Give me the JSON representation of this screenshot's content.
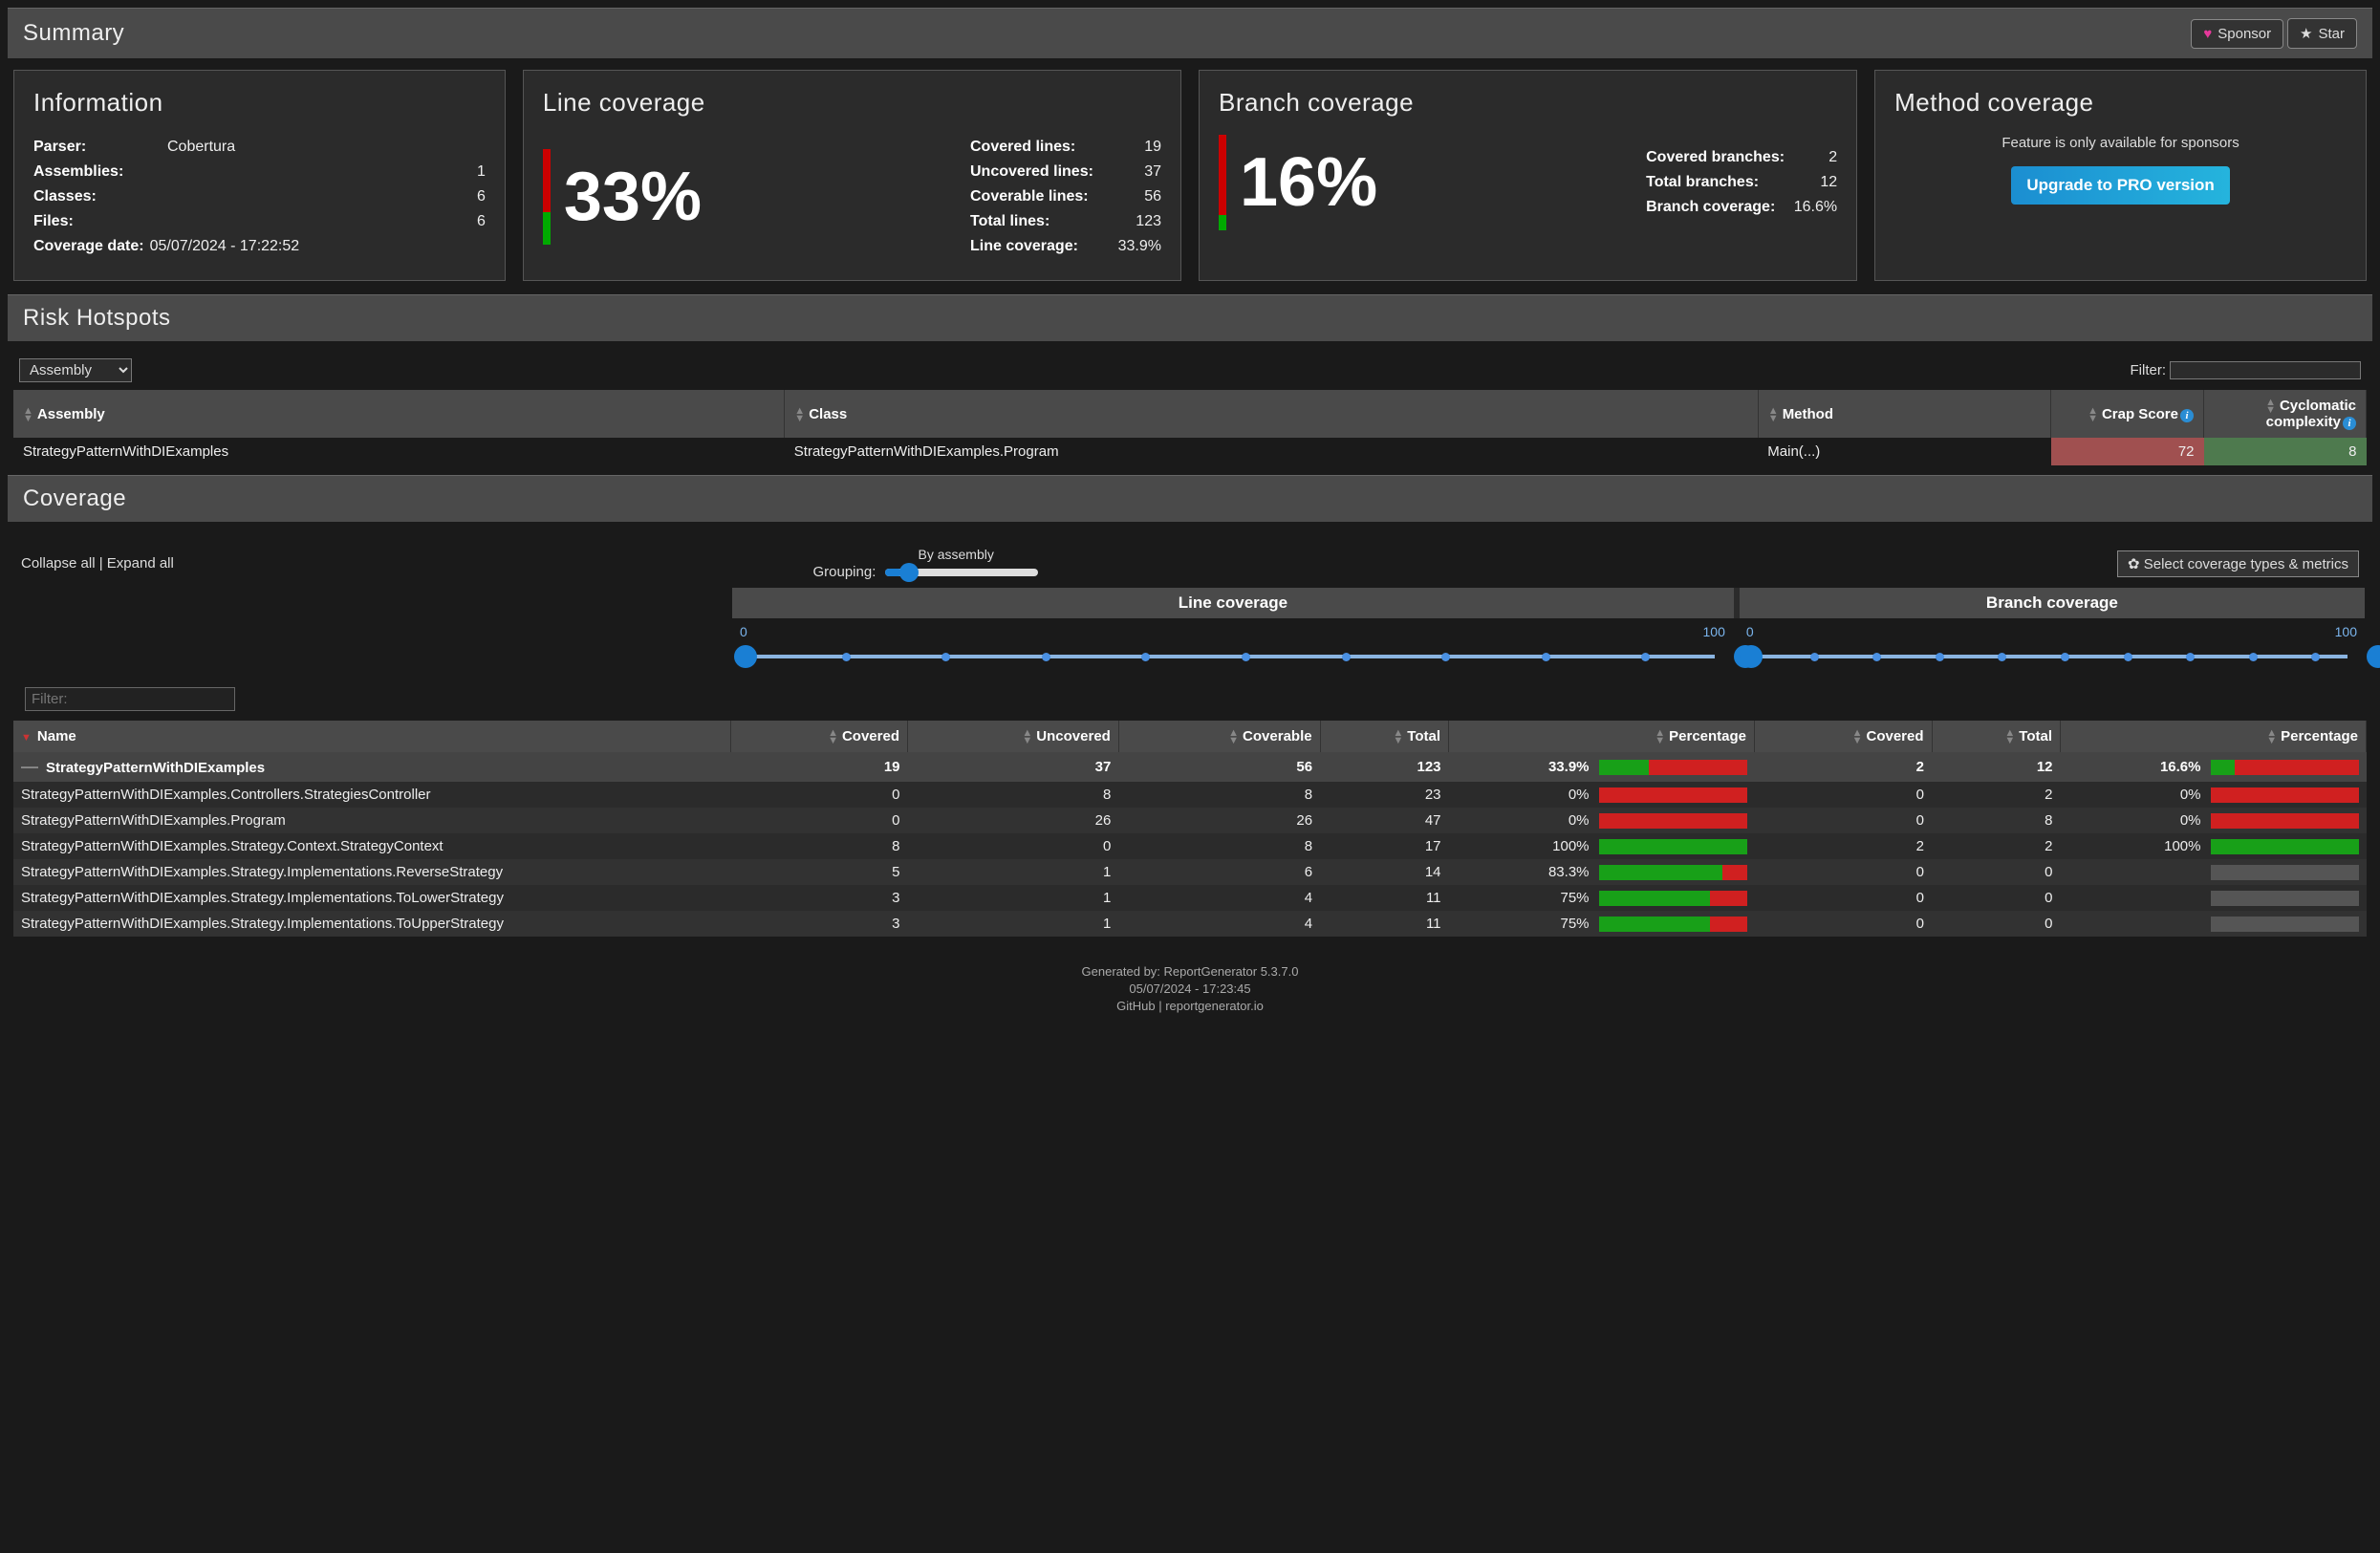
{
  "summary": {
    "title": "Summary",
    "sponsor_label": "Sponsor",
    "star_label": "Star"
  },
  "info": {
    "heading": "Information",
    "parser_k": "Parser:",
    "parser_v": "Cobertura",
    "assemblies_k": "Assemblies:",
    "assemblies_v": "1",
    "classes_k": "Classes:",
    "classes_v": "6",
    "files_k": "Files:",
    "files_v": "6",
    "date_k": "Coverage date:",
    "date_v": "05/07/2024 - 17:22:52"
  },
  "line_cov": {
    "heading": "Line coverage",
    "percent_big": "33%",
    "bar_red_pct": 66,
    "bar_green_pct": 34,
    "stats": {
      "covered_k": "Covered lines:",
      "covered_v": "19",
      "uncovered_k": "Uncovered lines:",
      "uncovered_v": "37",
      "coverable_k": "Coverable lines:",
      "coverable_v": "56",
      "total_k": "Total lines:",
      "total_v": "123",
      "pct_k": "Line coverage:",
      "pct_v": "33.9%"
    }
  },
  "branch_cov": {
    "heading": "Branch coverage",
    "percent_big": "16%",
    "bar_red_pct": 84,
    "bar_green_pct": 16,
    "stats": {
      "covered_k": "Covered branches:",
      "covered_v": "2",
      "total_k": "Total branches:",
      "total_v": "12",
      "pct_k": "Branch coverage:",
      "pct_v": "16.6%"
    }
  },
  "method_cov": {
    "heading": "Method coverage",
    "text": "Feature is only available for sponsors",
    "button": "Upgrade to PRO version"
  },
  "risk": {
    "title": "Risk Hotspots",
    "select": "Assembly",
    "filter_label": "Filter:",
    "cols": {
      "assembly": "Assembly",
      "class": "Class",
      "method": "Method",
      "crap": "Crap Score",
      "cyc": "Cyclomatic complexity"
    },
    "row": {
      "assembly": "StrategyPatternWithDIExamples",
      "class": "StrategyPatternWithDIExamples.Program",
      "method": "Main(...)",
      "crap": "72",
      "cyc": "8"
    },
    "crap_bg": "#a05050",
    "cyc_bg": "#4e7a4e"
  },
  "coverage": {
    "title": "Coverage",
    "collapse": "Collapse all",
    "expand": "Expand all",
    "grouping_label": "Grouping:",
    "grouping_value": "By assembly",
    "select_metrics": "Select coverage types & metrics",
    "hdr_line": "Line coverage",
    "hdr_branch": "Branch coverage",
    "range": {
      "min": "0",
      "max": "100"
    },
    "filter_ph": "Filter:",
    "cols": {
      "name": "Name",
      "covered": "Covered",
      "uncovered": "Uncovered",
      "coverable": "Coverable",
      "total": "Total",
      "pct": "Percentage",
      "bcovered": "Covered",
      "btotal": "Total",
      "bpct": "Percentage"
    },
    "rows": [
      {
        "sum": true,
        "name": "StrategyPatternWithDIExamples",
        "covered": "19",
        "uncovered": "37",
        "coverable": "56",
        "total": "123",
        "pct": "33.9%",
        "pg": 33.9,
        "pr": 66.1,
        "bcov": "2",
        "btot": "12",
        "bpct": "16.6%",
        "bg": 16.6,
        "br": 83.4
      },
      {
        "name": "StrategyPatternWithDIExamples.Controllers.StrategiesController",
        "covered": "0",
        "uncovered": "8",
        "coverable": "8",
        "total": "23",
        "pct": "0%",
        "pg": 0,
        "pr": 100,
        "bcov": "0",
        "btot": "2",
        "bpct": "0%",
        "bg": 0,
        "br": 100
      },
      {
        "name": "StrategyPatternWithDIExamples.Program",
        "covered": "0",
        "uncovered": "26",
        "coverable": "26",
        "total": "47",
        "pct": "0%",
        "pg": 0,
        "pr": 100,
        "bcov": "0",
        "btot": "8",
        "bpct": "0%",
        "bg": 0,
        "br": 100
      },
      {
        "name": "StrategyPatternWithDIExamples.Strategy.Context.StrategyContext",
        "covered": "8",
        "uncovered": "0",
        "coverable": "8",
        "total": "17",
        "pct": "100%",
        "pg": 100,
        "pr": 0,
        "bcov": "2",
        "btot": "2",
        "bpct": "100%",
        "bg": 100,
        "br": 0
      },
      {
        "name": "StrategyPatternWithDIExamples.Strategy.Implementations.ReverseStrategy",
        "covered": "5",
        "uncovered": "1",
        "coverable": "6",
        "total": "14",
        "pct": "83.3%",
        "pg": 83.3,
        "pr": 16.7,
        "bcov": "0",
        "btot": "0",
        "bpct": "",
        "empty": true
      },
      {
        "name": "StrategyPatternWithDIExamples.Strategy.Implementations.ToLowerStrategy",
        "covered": "3",
        "uncovered": "1",
        "coverable": "4",
        "total": "11",
        "pct": "75%",
        "pg": 75,
        "pr": 25,
        "bcov": "0",
        "btot": "0",
        "bpct": "",
        "empty": true
      },
      {
        "name": "StrategyPatternWithDIExamples.Strategy.Implementations.ToUpperStrategy",
        "covered": "3",
        "uncovered": "1",
        "coverable": "4",
        "total": "11",
        "pct": "75%",
        "pg": 75,
        "pr": 25,
        "bcov": "0",
        "btot": "0",
        "bpct": "",
        "empty": true
      }
    ],
    "bar_colors": {
      "green": "#18a018",
      "red": "#d02020",
      "empty": "#555"
    }
  },
  "footer": {
    "l1": "Generated by: ReportGenerator 5.3.7.0",
    "l2": "05/07/2024 - 17:23:45",
    "l3": "GitHub | reportgenerator.io"
  }
}
